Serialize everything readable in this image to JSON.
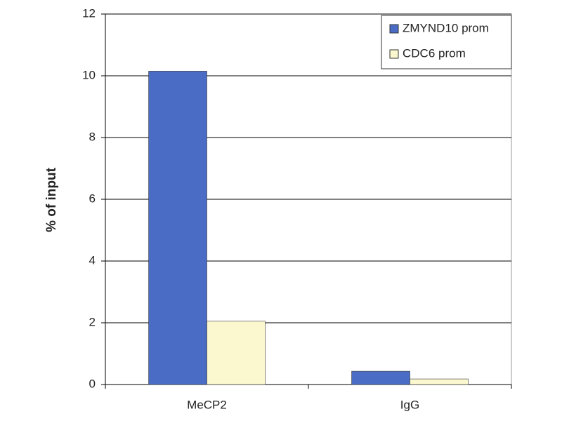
{
  "chart_data": {
    "type": "bar",
    "y_label": "% of input",
    "categories": [
      "MeCP2",
      "IgG"
    ],
    "series": [
      {
        "name": "ZMYND10 prom",
        "color": "#4a6cc4",
        "values": [
          10.15,
          0.43
        ]
      },
      {
        "name": "CDC6 prom",
        "color": "#fbf8d0",
        "values": [
          2.05,
          0.18
        ]
      }
    ],
    "ylim": [
      0,
      12
    ],
    "yticks": [
      0,
      2,
      4,
      6,
      8,
      10,
      12
    ],
    "grid": true,
    "legend": "top-right"
  }
}
